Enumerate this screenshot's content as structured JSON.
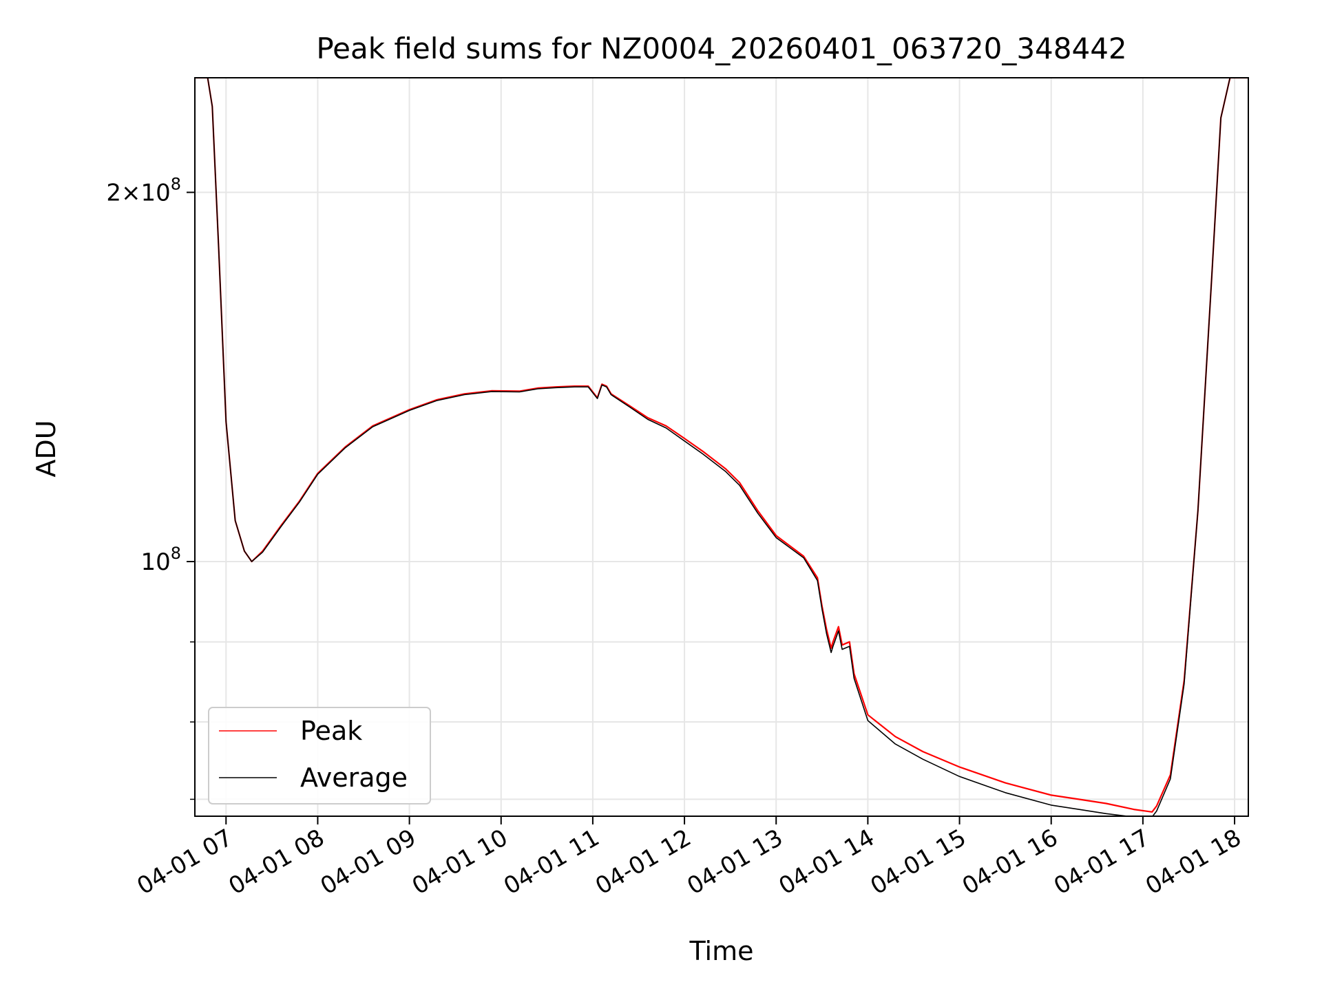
{
  "chart_data": {
    "type": "line",
    "title": "Peak field sums for NZ0004_20260401_063720_348442",
    "xlabel": "Time",
    "ylabel": "ADU",
    "yscale": "log",
    "grid": true,
    "legend_position": "lower-left",
    "xlim": [
      6.66,
      18.15
    ],
    "ylim": [
      62000000,
      248000000
    ],
    "x_tick_values": [
      7,
      8,
      9,
      10,
      11,
      12,
      13,
      14,
      15,
      16,
      17,
      18
    ],
    "x_tick_labels": [
      "04-01 07",
      "04-01 08",
      "04-01 09",
      "04-01 10",
      "04-01 11",
      "04-01 12",
      "04-01 13",
      "04-01 14",
      "04-01 15",
      "04-01 16",
      "04-01 17",
      "04-01 18"
    ],
    "y_major_ticks": [
      {
        "value": 100000000,
        "base": "10",
        "exp": "8"
      },
      {
        "value": 200000000,
        "base": "2×10",
        "exp": "8"
      }
    ],
    "y_minor_ticks": [
      64000000,
      74000000,
      86000000
    ],
    "x_hours": [
      6.67,
      6.8,
      6.85,
      6.92,
      7.0,
      7.1,
      7.2,
      7.28,
      7.4,
      7.6,
      7.8,
      8.0,
      8.3,
      8.6,
      9.0,
      9.3,
      9.6,
      9.9,
      10.2,
      10.4,
      10.6,
      10.8,
      10.95,
      11.05,
      11.1,
      11.15,
      11.2,
      11.4,
      11.6,
      11.8,
      12.0,
      12.2,
      12.45,
      12.6,
      12.8,
      13.0,
      13.3,
      13.45,
      13.5,
      13.55,
      13.6,
      13.62,
      13.68,
      13.72,
      13.8,
      13.85,
      14.0,
      14.3,
      14.6,
      15.0,
      15.5,
      16.0,
      16.3,
      16.6,
      16.9,
      17.1,
      17.15,
      17.3,
      17.45,
      17.6,
      17.75,
      17.85,
      17.95,
      18.15
    ],
    "series": [
      {
        "name": "Peak",
        "color": "#ff0000",
        "values": [
          248000000,
          248000000,
          235000000,
          180000000,
          130000000,
          108000000,
          102000000,
          100000000,
          102000000,
          107000000,
          112000000,
          118000000,
          124000000,
          129000000,
          133000000,
          135500000,
          137000000,
          137800000,
          137700000,
          138500000,
          138800000,
          139000000,
          139000000,
          136000000,
          139500000,
          139000000,
          137000000,
          134000000,
          131000000,
          129000000,
          126000000,
          123000000,
          119000000,
          116000000,
          110000000,
          105000000,
          101000000,
          97000000,
          92000000,
          88000000,
          85000000,
          86000000,
          88500000,
          85500000,
          86000000,
          81000000,
          75000000,
          72000000,
          70000000,
          68000000,
          66000000,
          64500000,
          64000000,
          63500000,
          62800000,
          62500000,
          63200000,
          67000000,
          80000000,
          110000000,
          170000000,
          230000000,
          248000000,
          248000000
        ]
      },
      {
        "name": "Average",
        "color": "#000000",
        "values": [
          248000000,
          248000000,
          235000000,
          180000000,
          130000000,
          108000000,
          102000000,
          100000000,
          101800000,
          106800000,
          111800000,
          117800000,
          123800000,
          128800000,
          132800000,
          135300000,
          136800000,
          137600000,
          137500000,
          138300000,
          138600000,
          138800000,
          138800000,
          135800000,
          139300000,
          138800000,
          136800000,
          133700000,
          130600000,
          128500000,
          125400000,
          122400000,
          118400000,
          115400000,
          109500000,
          104600000,
          100700000,
          96500000,
          91500000,
          87300000,
          84300000,
          85300000,
          87800000,
          84800000,
          85300000,
          80300000,
          74200000,
          71000000,
          69000000,
          66800000,
          64800000,
          63300000,
          62800000,
          62300000,
          61900000,
          61900000,
          62600000,
          66500000,
          79500000,
          110000000,
          170000000,
          230000000,
          248000000,
          248000000
        ]
      }
    ]
  }
}
